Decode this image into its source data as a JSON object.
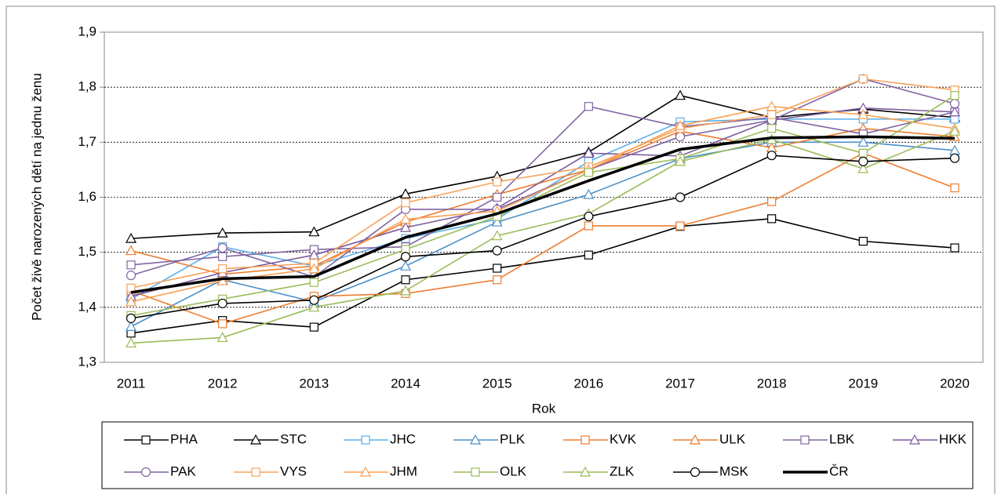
{
  "chart_data": {
    "type": "line",
    "y_label": "Počet živě narozených dětí na jednu ženu",
    "x_label": "Rok",
    "categories": [
      "2011",
      "2012",
      "2013",
      "2014",
      "2015",
      "2016",
      "2017",
      "2018",
      "2019",
      "2020"
    ],
    "ylim": [
      1.3,
      1.9
    ],
    "yticks": [
      {
        "value": 1.3,
        "label": "1,3"
      },
      {
        "value": 1.4,
        "label": "1,4"
      },
      {
        "value": 1.5,
        "label": "1,5"
      },
      {
        "value": 1.6,
        "label": "1,6"
      },
      {
        "value": 1.7,
        "label": "1,7"
      },
      {
        "value": 1.8,
        "label": "1,8"
      },
      {
        "value": 1.9,
        "label": "1,9"
      }
    ],
    "grid": true,
    "legend": "bottom",
    "series": [
      {
        "name": "PHA",
        "color": "#000000",
        "marker": "square",
        "values": [
          1.353,
          1.376,
          1.364,
          1.45,
          1.471,
          1.495,
          1.547,
          1.561,
          1.52,
          1.508
        ]
      },
      {
        "name": "STC",
        "color": "#000000",
        "marker": "triangle",
        "values": [
          1.525,
          1.535,
          1.537,
          1.606,
          1.638,
          1.682,
          1.785,
          1.745,
          1.76,
          1.745
        ]
      },
      {
        "name": "JHC",
        "color": "#5bb0e8",
        "marker": "square",
        "values": [
          1.415,
          1.51,
          1.475,
          1.525,
          1.56,
          1.665,
          1.737,
          1.742,
          1.742,
          1.742
        ]
      },
      {
        "name": "PLK",
        "color": "#4a8fc8",
        "marker": "triangle",
        "values": [
          1.365,
          1.45,
          1.41,
          1.475,
          1.555,
          1.605,
          1.67,
          1.7,
          1.7,
          1.685
        ]
      },
      {
        "name": "KVK",
        "color": "#ed7d31",
        "marker": "square",
        "values": [
          1.43,
          1.37,
          1.42,
          1.425,
          1.45,
          1.548,
          1.548,
          1.592,
          1.68,
          1.617
        ]
      },
      {
        "name": "ULK",
        "color": "#ed7d31",
        "marker": "triangle",
        "values": [
          1.503,
          1.46,
          1.475,
          1.555,
          1.605,
          1.65,
          1.72,
          1.69,
          1.725,
          1.71
        ]
      },
      {
        "name": "LBK",
        "color": "#8064a2",
        "marker": "square",
        "values": [
          1.477,
          1.492,
          1.505,
          1.51,
          1.6,
          1.765,
          1.728,
          1.745,
          1.715,
          1.755
        ]
      },
      {
        "name": "HKK",
        "color": "#7a5a9e",
        "marker": "triangle",
        "values": [
          1.42,
          1.463,
          1.495,
          1.545,
          1.58,
          1.68,
          1.675,
          1.74,
          1.762,
          1.755
        ]
      },
      {
        "name": "PAK",
        "color": "#8064a2",
        "marker": "circle",
        "values": [
          1.458,
          1.508,
          1.455,
          1.578,
          1.578,
          1.65,
          1.71,
          1.74,
          1.815,
          1.77
        ]
      },
      {
        "name": "VYS",
        "color": "#f7a35c",
        "marker": "square",
        "values": [
          1.435,
          1.47,
          1.48,
          1.59,
          1.628,
          1.655,
          1.725,
          1.75,
          1.815,
          1.795
        ]
      },
      {
        "name": "JHM",
        "color": "#f9a050",
        "marker": "triangle",
        "values": [
          1.41,
          1.448,
          1.47,
          1.56,
          1.575,
          1.65,
          1.73,
          1.765,
          1.75,
          1.725
        ]
      },
      {
        "name": "OLK",
        "color": "#9bbb59",
        "marker": "square",
        "values": [
          1.385,
          1.415,
          1.445,
          1.505,
          1.565,
          1.645,
          1.67,
          1.725,
          1.68,
          1.785
        ]
      },
      {
        "name": "ZLK",
        "color": "#9bbb59",
        "marker": "triangle",
        "values": [
          1.335,
          1.345,
          1.4,
          1.43,
          1.53,
          1.57,
          1.665,
          1.705,
          1.652,
          1.72
        ]
      },
      {
        "name": "MSK",
        "color": "#000000",
        "marker": "circle",
        "values": [
          1.38,
          1.407,
          1.413,
          1.492,
          1.503,
          1.565,
          1.6,
          1.676,
          1.665,
          1.671
        ]
      },
      {
        "name": "ČR",
        "color": "#000000",
        "marker": "none",
        "line_width": 3.5,
        "values": [
          1.427,
          1.452,
          1.456,
          1.527,
          1.57,
          1.63,
          1.687,
          1.708,
          1.71,
          1.707
        ]
      }
    ]
  }
}
